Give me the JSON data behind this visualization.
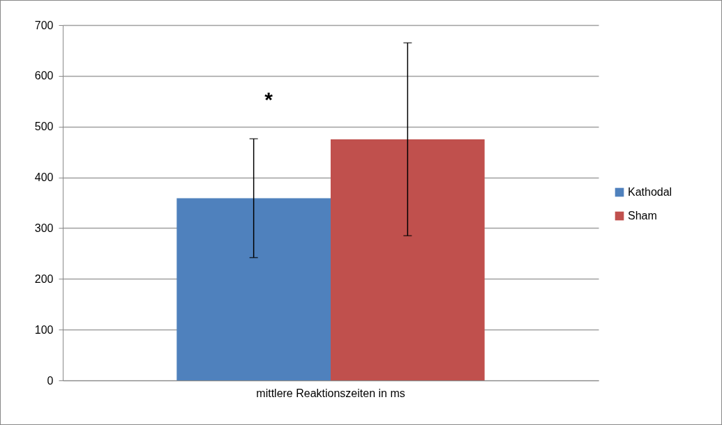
{
  "chart_data": {
    "type": "bar",
    "categories": [
      "mittlere Reaktionszeiten in ms"
    ],
    "series": [
      {
        "name": "Kathodal",
        "color": "#4f81bd",
        "values": [
          359
        ],
        "errors": [
          117
        ]
      },
      {
        "name": "Sham",
        "color": "#c0504d",
        "values": [
          475
        ],
        "errors": [
          190
        ]
      }
    ],
    "ylim": [
      0,
      700
    ],
    "yticks": [
      0,
      100,
      200,
      300,
      400,
      500,
      600,
      700
    ],
    "grid": "y",
    "legend": "right",
    "annotations": [
      "*"
    ]
  }
}
